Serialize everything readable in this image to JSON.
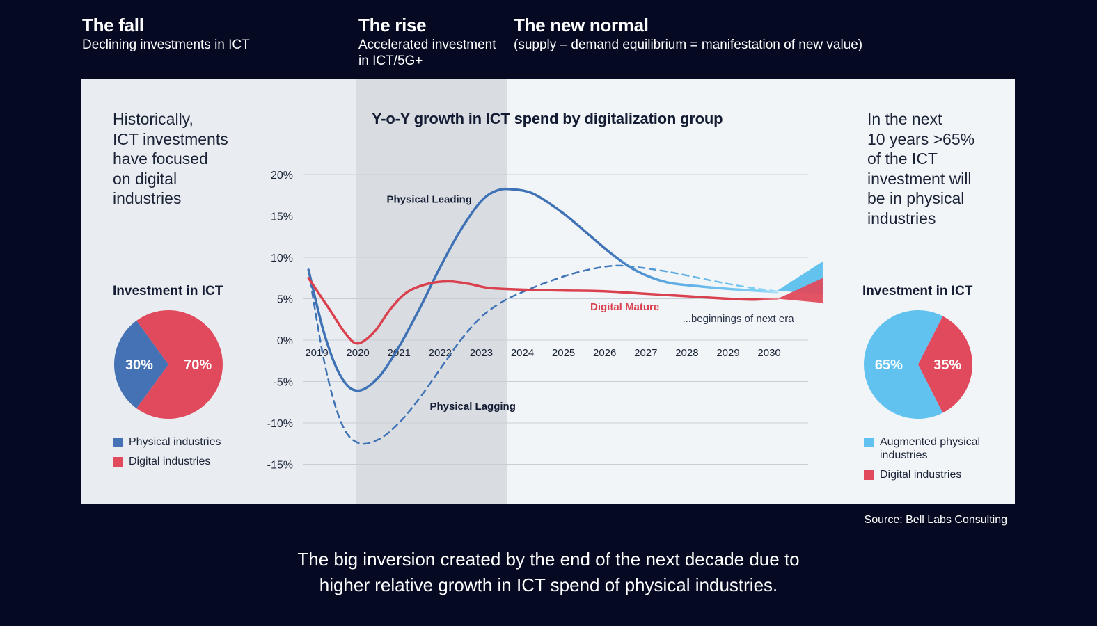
{
  "phases": [
    {
      "title": "The fall",
      "subtitle": "Declining investments in ICT"
    },
    {
      "title": "The rise",
      "subtitle": "Accelerated investment\nin ICT/5G+"
    },
    {
      "title": "The new normal",
      "subtitle": "(supply – demand equilibrium = manifestation of new value)"
    }
  ],
  "left_panel": {
    "text": "Historically,\nICT investments\nhave focused\non digital\nindustries",
    "pie_title": "Investment in ICT",
    "pie": [
      {
        "label": "Physical industries",
        "value": 30,
        "display": "30%",
        "color": "#4472b4"
      },
      {
        "label": "Digital industries",
        "value": 70,
        "display": "70%",
        "color": "#e04a5c"
      }
    ]
  },
  "right_panel": {
    "text": "In the next\n10 years >65%\nof the ICT\ninvestment will\nbe in physical\nindustries",
    "pie_title": "Investment in ICT",
    "pie": [
      {
        "label": "Augmented physical\nindustries",
        "value": 65,
        "display": "65%",
        "color": "#62c2ef"
      },
      {
        "label": "Digital industries",
        "value": 35,
        "display": "35%",
        "color": "#e04a5c"
      }
    ]
  },
  "chart_data": {
    "type": "line",
    "title": "Y-o-Y growth in ICT spend by digitalization group",
    "x": [
      2019,
      2020,
      2021,
      2022,
      2023,
      2024,
      2025,
      2026,
      2027,
      2028,
      2029,
      2030
    ],
    "ylim": [
      -15,
      20
    ],
    "y_ticks": [
      20,
      15,
      10,
      5,
      0,
      -5,
      -10,
      -15
    ],
    "y_tick_labels": [
      "20%",
      "15%",
      "10%",
      "5%",
      "0%",
      "-5%",
      "-10%",
      "-15%"
    ],
    "x_tick_labels": [
      "2019",
      "2020",
      "2021",
      "2022",
      "2023",
      "2024",
      "2025",
      "2026",
      "2027",
      "2028",
      "2029",
      "2030"
    ],
    "grid": true,
    "shaded_period": [
      2020,
      2023.6
    ],
    "series": [
      {
        "name": "Physical Leading",
        "color": "#3f72b5",
        "style": "solid",
        "x": [
          2018.8,
          2019.2,
          2019.6,
          2020,
          2020.5,
          2021,
          2021.5,
          2022,
          2022.5,
          2023,
          2023.4,
          2023.8,
          2024.3,
          2025,
          2025.6,
          2026.2,
          2026.8,
          2027.5,
          2028.3,
          2029,
          2029.6,
          2030.2
        ],
        "values": [
          8.5,
          0.5,
          -4.5,
          -6.1,
          -4.5,
          -0.8,
          3.8,
          8.8,
          13.3,
          16.8,
          18.1,
          18.2,
          17.6,
          15.3,
          12.8,
          10.3,
          8.3,
          7.0,
          6.5,
          6.2,
          6.0,
          5.8
        ]
      },
      {
        "name": "Physical Lagging",
        "color": "#3f72b5",
        "style": "dashed",
        "x": [
          2018.8,
          2019.2,
          2019.6,
          2020,
          2020.5,
          2021,
          2021.5,
          2022,
          2022.5,
          2023,
          2023.5,
          2024,
          2024.6,
          2025.2,
          2025.8,
          2026.3,
          2026.8,
          2027.5,
          2028.3,
          2029,
          2029.6,
          2030.2
        ],
        "values": [
          8.5,
          -3.0,
          -10.0,
          -12.4,
          -12.0,
          -10.0,
          -7.0,
          -3.5,
          0.0,
          2.8,
          4.6,
          5.8,
          7.0,
          8.0,
          8.7,
          9.0,
          8.8,
          8.3,
          7.5,
          6.8,
          6.3,
          5.9
        ]
      },
      {
        "name": "Digital Mature",
        "color": "#d9414f",
        "style": "solid",
        "x": [
          2018.8,
          2019.3,
          2019.7,
          2020,
          2020.4,
          2020.8,
          2021.2,
          2021.7,
          2022.2,
          2022.7,
          2023.2,
          2024,
          2025,
          2026,
          2027,
          2028,
          2029,
          2029.6,
          2030.2
        ],
        "values": [
          7.5,
          3.8,
          0.8,
          -0.4,
          1.0,
          3.8,
          5.8,
          6.8,
          7.1,
          6.8,
          6.3,
          6.1,
          6.0,
          5.9,
          5.6,
          5.3,
          5.0,
          4.9,
          5.0
        ]
      }
    ],
    "annotations": [
      "Physical Leading",
      "Physical Lagging",
      "Digital Mature",
      "...beginnings of next era"
    ]
  },
  "source": "Source: Bell Labs Consulting",
  "caption": "The big inversion created by the end of the next decade due to\nhigher relative growth in ICT spend of physical industries."
}
